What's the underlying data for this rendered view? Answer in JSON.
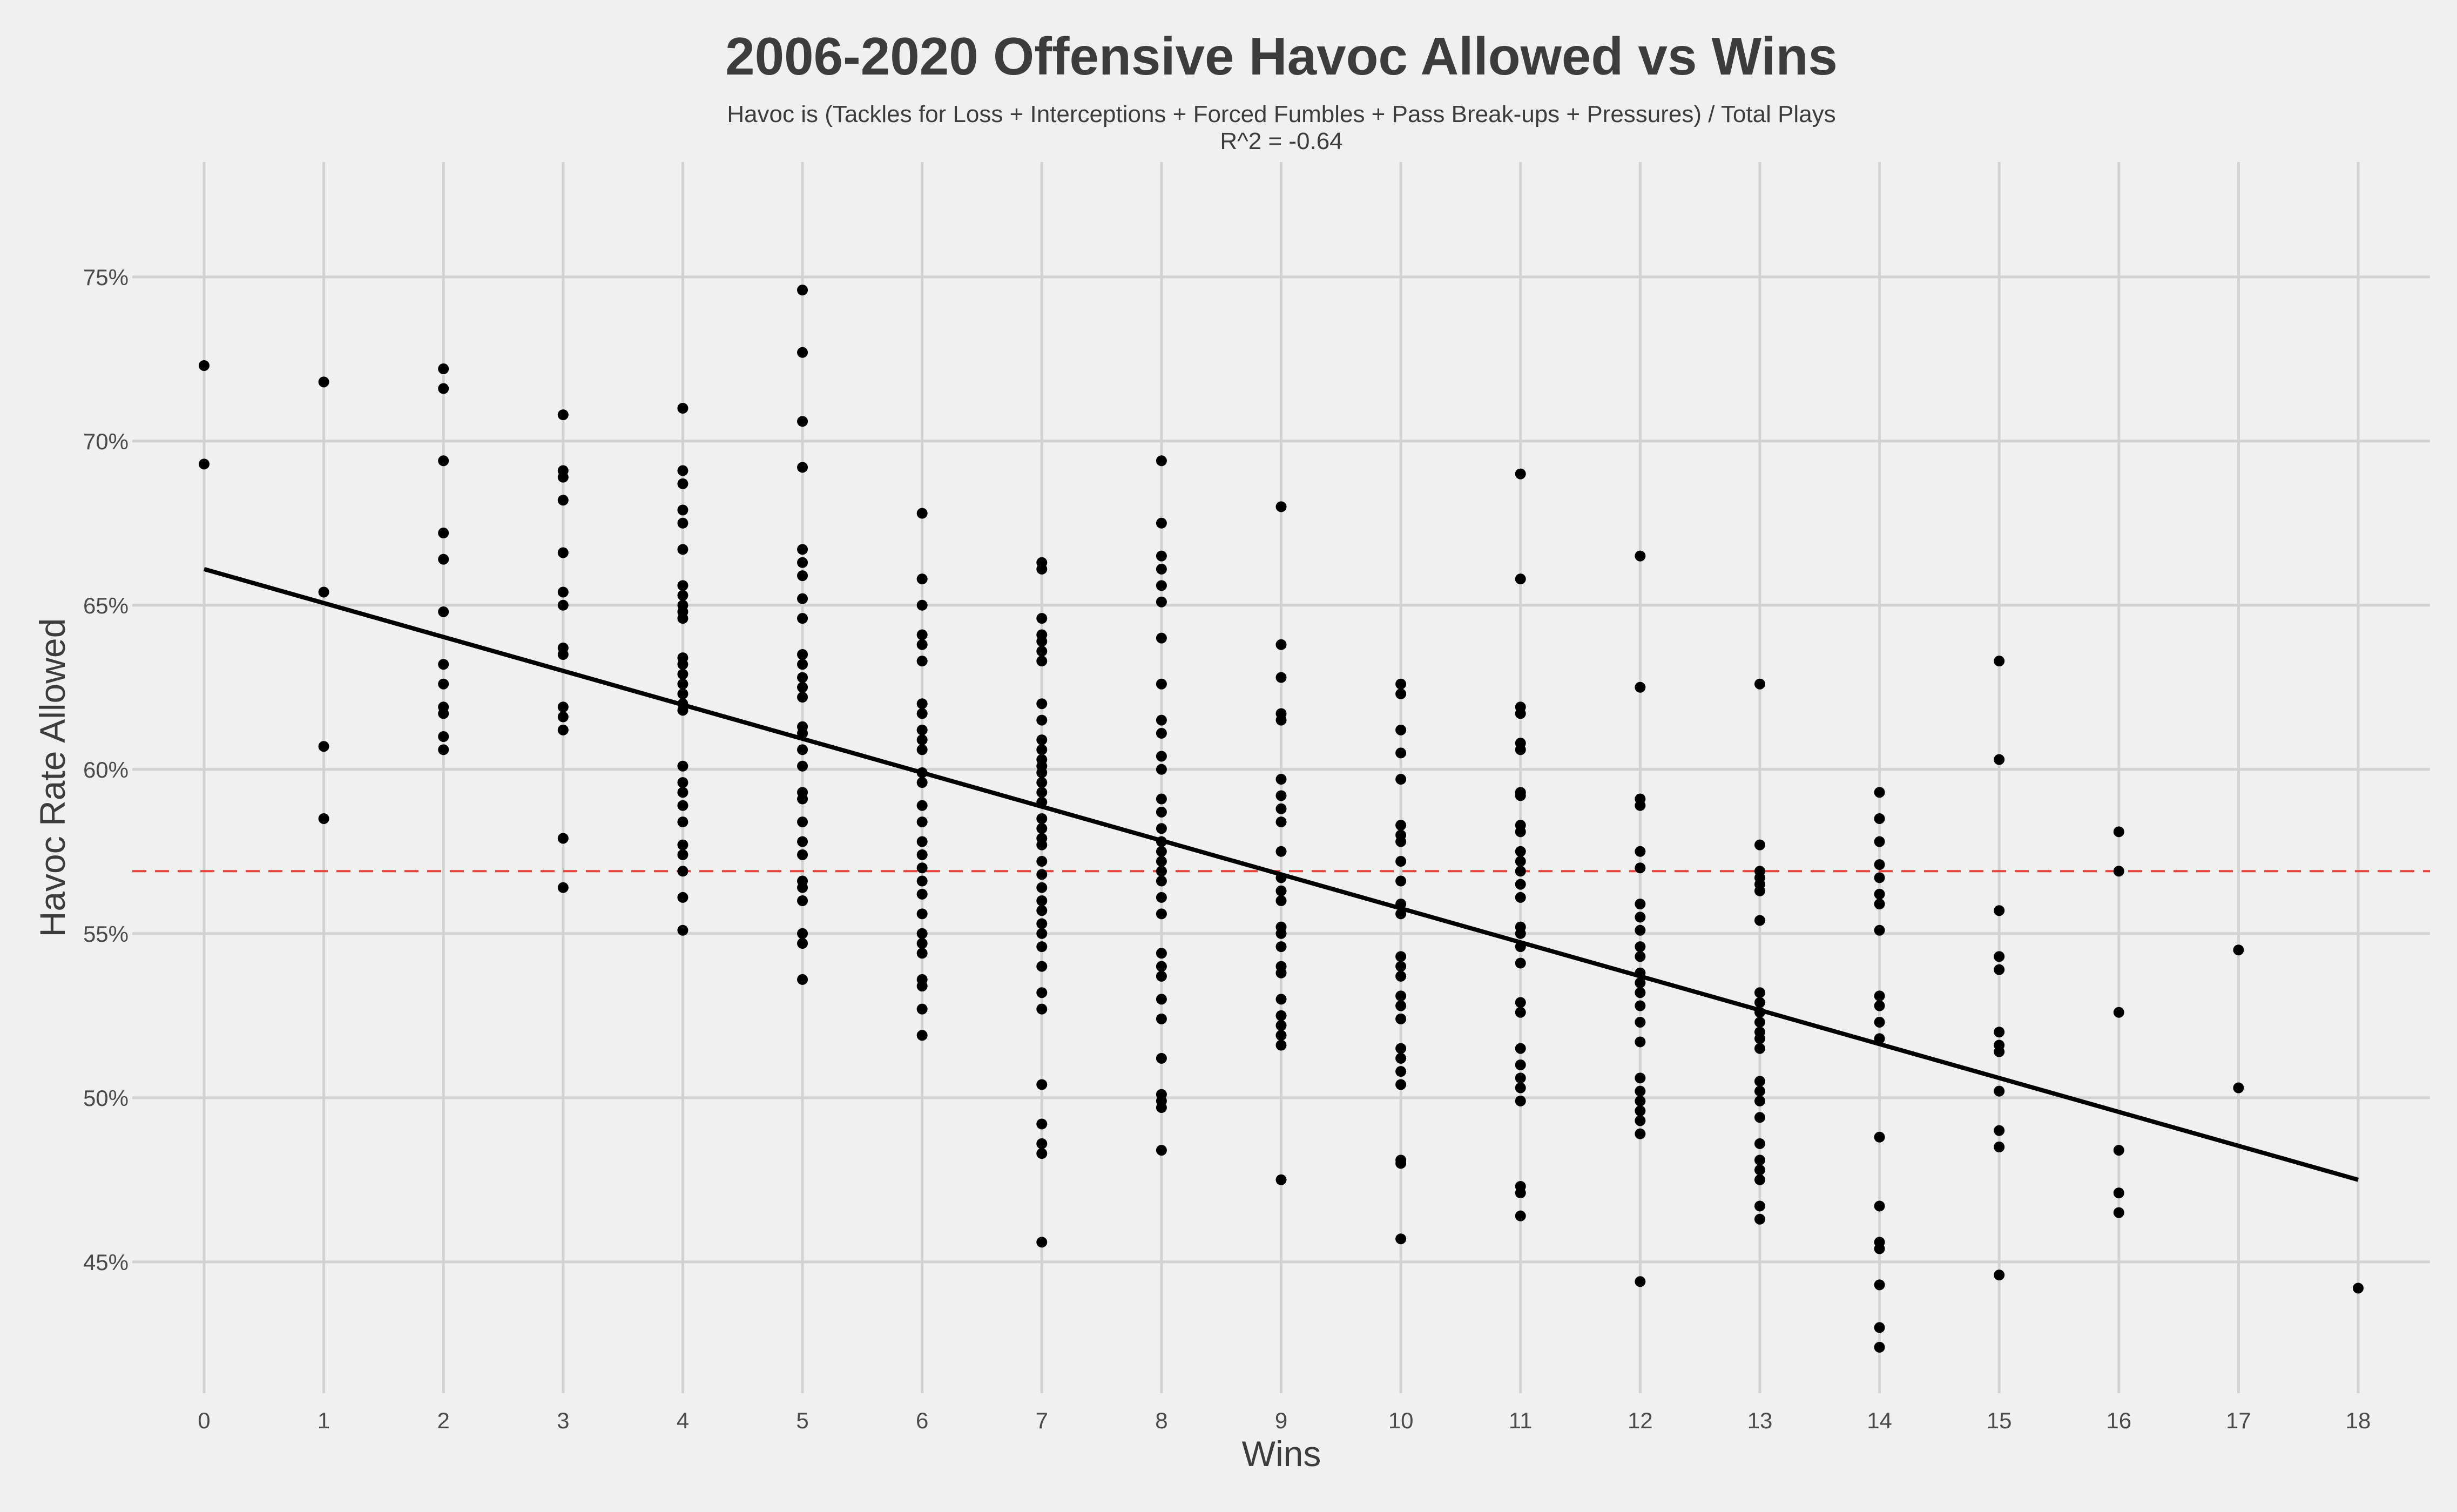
{
  "chart_data": {
    "type": "scatter",
    "title": "2006-2020 Offensive Havoc Allowed vs Wins",
    "subtitle_line1": "Havoc is (Tackles for Loss + Interceptions + Forced Fumbles + Pass Break-ups + Pressures) / Total Plays",
    "subtitle_line2": "R^2 = -0.64",
    "xlabel": "Wins",
    "ylabel": "Havoc Rate Allowed",
    "xlim": [
      -0.6,
      18.6
    ],
    "ylim": [
      41.0,
      78.5
    ],
    "x_ticks": [
      0,
      1,
      2,
      3,
      4,
      5,
      6,
      7,
      8,
      9,
      10,
      11,
      12,
      13,
      14,
      15,
      16,
      17,
      18
    ],
    "y_ticks": [
      45,
      50,
      55,
      60,
      65,
      70,
      75
    ],
    "y_tick_labels": [
      "45%",
      "50%",
      "55%",
      "60%",
      "65%",
      "70%",
      "75%"
    ],
    "grid": true,
    "reference_line": {
      "y": 56.9,
      "style": "dashed",
      "color": "#e8413c"
    },
    "trend_line": {
      "x": [
        0,
        18
      ],
      "y": [
        66.1,
        47.5
      ],
      "color": "#000000"
    },
    "point_color": "#000000",
    "points": [
      {
        "x": 0,
        "y": 72.3
      },
      {
        "x": 0,
        "y": 69.3
      },
      {
        "x": 1,
        "y": 71.8
      },
      {
        "x": 1,
        "y": 65.4
      },
      {
        "x": 1,
        "y": 60.7
      },
      {
        "x": 1,
        "y": 58.5
      },
      {
        "x": 2,
        "y": 72.2
      },
      {
        "x": 2,
        "y": 71.6
      },
      {
        "x": 2,
        "y": 69.4
      },
      {
        "x": 2,
        "y": 67.2
      },
      {
        "x": 2,
        "y": 66.4
      },
      {
        "x": 2,
        "y": 64.8
      },
      {
        "x": 2,
        "y": 63.2
      },
      {
        "x": 2,
        "y": 62.6
      },
      {
        "x": 2,
        "y": 61.9
      },
      {
        "x": 2,
        "y": 61.7
      },
      {
        "x": 2,
        "y": 61.0
      },
      {
        "x": 2,
        "y": 60.6
      },
      {
        "x": 3,
        "y": 70.8
      },
      {
        "x": 3,
        "y": 69.1
      },
      {
        "x": 3,
        "y": 68.9
      },
      {
        "x": 3,
        "y": 68.2
      },
      {
        "x": 3,
        "y": 66.6
      },
      {
        "x": 3,
        "y": 65.4
      },
      {
        "x": 3,
        "y": 65.0
      },
      {
        "x": 3,
        "y": 63.7
      },
      {
        "x": 3,
        "y": 63.5
      },
      {
        "x": 3,
        "y": 61.9
      },
      {
        "x": 3,
        "y": 61.6
      },
      {
        "x": 3,
        "y": 61.2
      },
      {
        "x": 3,
        "y": 57.9
      },
      {
        "x": 3,
        "y": 56.4
      },
      {
        "x": 4,
        "y": 71.0
      },
      {
        "x": 4,
        "y": 69.1
      },
      {
        "x": 4,
        "y": 68.7
      },
      {
        "x": 4,
        "y": 67.9
      },
      {
        "x": 4,
        "y": 67.5
      },
      {
        "x": 4,
        "y": 66.7
      },
      {
        "x": 4,
        "y": 65.6
      },
      {
        "x": 4,
        "y": 65.3
      },
      {
        "x": 4,
        "y": 65.0
      },
      {
        "x": 4,
        "y": 64.8
      },
      {
        "x": 4,
        "y": 64.6
      },
      {
        "x": 4,
        "y": 63.4
      },
      {
        "x": 4,
        "y": 63.2
      },
      {
        "x": 4,
        "y": 62.9
      },
      {
        "x": 4,
        "y": 62.6
      },
      {
        "x": 4,
        "y": 62.3
      },
      {
        "x": 4,
        "y": 62.0
      },
      {
        "x": 4,
        "y": 61.8
      },
      {
        "x": 4,
        "y": 60.1
      },
      {
        "x": 4,
        "y": 59.6
      },
      {
        "x": 4,
        "y": 59.3
      },
      {
        "x": 4,
        "y": 58.9
      },
      {
        "x": 4,
        "y": 58.4
      },
      {
        "x": 4,
        "y": 57.7
      },
      {
        "x": 4,
        "y": 57.4
      },
      {
        "x": 4,
        "y": 56.9
      },
      {
        "x": 4,
        "y": 56.1
      },
      {
        "x": 4,
        "y": 55.1
      },
      {
        "x": 5,
        "y": 74.6
      },
      {
        "x": 5,
        "y": 72.7
      },
      {
        "x": 5,
        "y": 70.6
      },
      {
        "x": 5,
        "y": 69.2
      },
      {
        "x": 5,
        "y": 66.7
      },
      {
        "x": 5,
        "y": 66.3
      },
      {
        "x": 5,
        "y": 65.9
      },
      {
        "x": 5,
        "y": 65.2
      },
      {
        "x": 5,
        "y": 64.6
      },
      {
        "x": 5,
        "y": 63.5
      },
      {
        "x": 5,
        "y": 63.2
      },
      {
        "x": 5,
        "y": 62.8
      },
      {
        "x": 5,
        "y": 62.5
      },
      {
        "x": 5,
        "y": 62.2
      },
      {
        "x": 5,
        "y": 61.3
      },
      {
        "x": 5,
        "y": 61.1
      },
      {
        "x": 5,
        "y": 60.6
      },
      {
        "x": 5,
        "y": 60.1
      },
      {
        "x": 5,
        "y": 59.3
      },
      {
        "x": 5,
        "y": 59.1
      },
      {
        "x": 5,
        "y": 58.4
      },
      {
        "x": 5,
        "y": 57.8
      },
      {
        "x": 5,
        "y": 57.4
      },
      {
        "x": 5,
        "y": 56.6
      },
      {
        "x": 5,
        "y": 56.4
      },
      {
        "x": 5,
        "y": 56.0
      },
      {
        "x": 5,
        "y": 55.0
      },
      {
        "x": 5,
        "y": 54.7
      },
      {
        "x": 5,
        "y": 53.6
      },
      {
        "x": 6,
        "y": 67.8
      },
      {
        "x": 6,
        "y": 65.8
      },
      {
        "x": 6,
        "y": 65.0
      },
      {
        "x": 6,
        "y": 64.1
      },
      {
        "x": 6,
        "y": 63.8
      },
      {
        "x": 6,
        "y": 63.3
      },
      {
        "x": 6,
        "y": 62.0
      },
      {
        "x": 6,
        "y": 61.7
      },
      {
        "x": 6,
        "y": 61.2
      },
      {
        "x": 6,
        "y": 60.9
      },
      {
        "x": 6,
        "y": 60.6
      },
      {
        "x": 6,
        "y": 59.9
      },
      {
        "x": 6,
        "y": 59.6
      },
      {
        "x": 6,
        "y": 58.9
      },
      {
        "x": 6,
        "y": 58.4
      },
      {
        "x": 6,
        "y": 57.8
      },
      {
        "x": 6,
        "y": 57.4
      },
      {
        "x": 6,
        "y": 57.0
      },
      {
        "x": 6,
        "y": 56.6
      },
      {
        "x": 6,
        "y": 56.2
      },
      {
        "x": 6,
        "y": 55.6
      },
      {
        "x": 6,
        "y": 55.0
      },
      {
        "x": 6,
        "y": 54.7
      },
      {
        "x": 6,
        "y": 54.4
      },
      {
        "x": 6,
        "y": 53.6
      },
      {
        "x": 6,
        "y": 53.4
      },
      {
        "x": 6,
        "y": 52.7
      },
      {
        "x": 6,
        "y": 51.9
      },
      {
        "x": 7,
        "y": 66.3
      },
      {
        "x": 7,
        "y": 66.1
      },
      {
        "x": 7,
        "y": 64.6
      },
      {
        "x": 7,
        "y": 64.1
      },
      {
        "x": 7,
        "y": 63.9
      },
      {
        "x": 7,
        "y": 63.6
      },
      {
        "x": 7,
        "y": 63.3
      },
      {
        "x": 7,
        "y": 62.0
      },
      {
        "x": 7,
        "y": 61.5
      },
      {
        "x": 7,
        "y": 60.9
      },
      {
        "x": 7,
        "y": 60.6
      },
      {
        "x": 7,
        "y": 60.3
      },
      {
        "x": 7,
        "y": 60.1
      },
      {
        "x": 7,
        "y": 59.9
      },
      {
        "x": 7,
        "y": 59.6
      },
      {
        "x": 7,
        "y": 59.3
      },
      {
        "x": 7,
        "y": 59.0
      },
      {
        "x": 7,
        "y": 58.5
      },
      {
        "x": 7,
        "y": 58.2
      },
      {
        "x": 7,
        "y": 57.9
      },
      {
        "x": 7,
        "y": 57.7
      },
      {
        "x": 7,
        "y": 57.2
      },
      {
        "x": 7,
        "y": 56.8
      },
      {
        "x": 7,
        "y": 56.4
      },
      {
        "x": 7,
        "y": 56.0
      },
      {
        "x": 7,
        "y": 55.7
      },
      {
        "x": 7,
        "y": 55.3
      },
      {
        "x": 7,
        "y": 55.0
      },
      {
        "x": 7,
        "y": 54.6
      },
      {
        "x": 7,
        "y": 54.0
      },
      {
        "x": 7,
        "y": 53.2
      },
      {
        "x": 7,
        "y": 52.7
      },
      {
        "x": 7,
        "y": 50.4
      },
      {
        "x": 7,
        "y": 49.2
      },
      {
        "x": 7,
        "y": 48.6
      },
      {
        "x": 7,
        "y": 48.3
      },
      {
        "x": 7,
        "y": 45.6
      },
      {
        "x": 8,
        "y": 69.4
      },
      {
        "x": 8,
        "y": 67.5
      },
      {
        "x": 8,
        "y": 66.5
      },
      {
        "x": 8,
        "y": 66.1
      },
      {
        "x": 8,
        "y": 65.6
      },
      {
        "x": 8,
        "y": 65.1
      },
      {
        "x": 8,
        "y": 64.0
      },
      {
        "x": 8,
        "y": 62.6
      },
      {
        "x": 8,
        "y": 61.5
      },
      {
        "x": 8,
        "y": 61.1
      },
      {
        "x": 8,
        "y": 60.4
      },
      {
        "x": 8,
        "y": 60.0
      },
      {
        "x": 8,
        "y": 59.1
      },
      {
        "x": 8,
        "y": 58.7
      },
      {
        "x": 8,
        "y": 58.2
      },
      {
        "x": 8,
        "y": 57.8
      },
      {
        "x": 8,
        "y": 57.5
      },
      {
        "x": 8,
        "y": 57.2
      },
      {
        "x": 8,
        "y": 56.9
      },
      {
        "x": 8,
        "y": 56.6
      },
      {
        "x": 8,
        "y": 56.1
      },
      {
        "x": 8,
        "y": 55.6
      },
      {
        "x": 8,
        "y": 54.4
      },
      {
        "x": 8,
        "y": 54.0
      },
      {
        "x": 8,
        "y": 53.7
      },
      {
        "x": 8,
        "y": 53.0
      },
      {
        "x": 8,
        "y": 52.4
      },
      {
        "x": 8,
        "y": 51.2
      },
      {
        "x": 8,
        "y": 50.1
      },
      {
        "x": 8,
        "y": 49.9
      },
      {
        "x": 8,
        "y": 49.7
      },
      {
        "x": 8,
        "y": 48.4
      },
      {
        "x": 9,
        "y": 68.0
      },
      {
        "x": 9,
        "y": 63.8
      },
      {
        "x": 9,
        "y": 62.8
      },
      {
        "x": 9,
        "y": 61.7
      },
      {
        "x": 9,
        "y": 61.5
      },
      {
        "x": 9,
        "y": 59.7
      },
      {
        "x": 9,
        "y": 59.2
      },
      {
        "x": 9,
        "y": 58.8
      },
      {
        "x": 9,
        "y": 58.4
      },
      {
        "x": 9,
        "y": 57.5
      },
      {
        "x": 9,
        "y": 56.7
      },
      {
        "x": 9,
        "y": 56.3
      },
      {
        "x": 9,
        "y": 56.0
      },
      {
        "x": 9,
        "y": 55.2
      },
      {
        "x": 9,
        "y": 55.0
      },
      {
        "x": 9,
        "y": 54.6
      },
      {
        "x": 9,
        "y": 54.0
      },
      {
        "x": 9,
        "y": 53.8
      },
      {
        "x": 9,
        "y": 53.0
      },
      {
        "x": 9,
        "y": 52.5
      },
      {
        "x": 9,
        "y": 52.2
      },
      {
        "x": 9,
        "y": 51.9
      },
      {
        "x": 9,
        "y": 51.6
      },
      {
        "x": 9,
        "y": 47.5
      },
      {
        "x": 10,
        "y": 62.6
      },
      {
        "x": 10,
        "y": 62.3
      },
      {
        "x": 10,
        "y": 61.2
      },
      {
        "x": 10,
        "y": 60.5
      },
      {
        "x": 10,
        "y": 59.7
      },
      {
        "x": 10,
        "y": 58.3
      },
      {
        "x": 10,
        "y": 58.0
      },
      {
        "x": 10,
        "y": 57.8
      },
      {
        "x": 10,
        "y": 57.2
      },
      {
        "x": 10,
        "y": 56.6
      },
      {
        "x": 10,
        "y": 55.9
      },
      {
        "x": 10,
        "y": 55.6
      },
      {
        "x": 10,
        "y": 54.3
      },
      {
        "x": 10,
        "y": 54.0
      },
      {
        "x": 10,
        "y": 53.7
      },
      {
        "x": 10,
        "y": 53.1
      },
      {
        "x": 10,
        "y": 52.8
      },
      {
        "x": 10,
        "y": 52.4
      },
      {
        "x": 10,
        "y": 51.5
      },
      {
        "x": 10,
        "y": 51.2
      },
      {
        "x": 10,
        "y": 50.8
      },
      {
        "x": 10,
        "y": 50.4
      },
      {
        "x": 10,
        "y": 48.1
      },
      {
        "x": 10,
        "y": 48.0
      },
      {
        "x": 10,
        "y": 45.7
      },
      {
        "x": 11,
        "y": 69.0
      },
      {
        "x": 11,
        "y": 65.8
      },
      {
        "x": 11,
        "y": 61.9
      },
      {
        "x": 11,
        "y": 61.7
      },
      {
        "x": 11,
        "y": 60.8
      },
      {
        "x": 11,
        "y": 60.6
      },
      {
        "x": 11,
        "y": 59.3
      },
      {
        "x": 11,
        "y": 59.2
      },
      {
        "x": 11,
        "y": 58.3
      },
      {
        "x": 11,
        "y": 58.1
      },
      {
        "x": 11,
        "y": 57.5
      },
      {
        "x": 11,
        "y": 57.2
      },
      {
        "x": 11,
        "y": 56.9
      },
      {
        "x": 11,
        "y": 56.5
      },
      {
        "x": 11,
        "y": 56.1
      },
      {
        "x": 11,
        "y": 55.2
      },
      {
        "x": 11,
        "y": 55.0
      },
      {
        "x": 11,
        "y": 54.6
      },
      {
        "x": 11,
        "y": 54.1
      },
      {
        "x": 11,
        "y": 52.9
      },
      {
        "x": 11,
        "y": 52.6
      },
      {
        "x": 11,
        "y": 51.5
      },
      {
        "x": 11,
        "y": 51.0
      },
      {
        "x": 11,
        "y": 50.6
      },
      {
        "x": 11,
        "y": 50.3
      },
      {
        "x": 11,
        "y": 49.9
      },
      {
        "x": 11,
        "y": 47.3
      },
      {
        "x": 11,
        "y": 47.1
      },
      {
        "x": 11,
        "y": 46.4
      },
      {
        "x": 12,
        "y": 66.5
      },
      {
        "x": 12,
        "y": 62.5
      },
      {
        "x": 12,
        "y": 59.1
      },
      {
        "x": 12,
        "y": 58.9
      },
      {
        "x": 12,
        "y": 57.5
      },
      {
        "x": 12,
        "y": 57.0
      },
      {
        "x": 12,
        "y": 55.9
      },
      {
        "x": 12,
        "y": 55.5
      },
      {
        "x": 12,
        "y": 55.1
      },
      {
        "x": 12,
        "y": 54.6
      },
      {
        "x": 12,
        "y": 54.3
      },
      {
        "x": 12,
        "y": 53.8
      },
      {
        "x": 12,
        "y": 53.5
      },
      {
        "x": 12,
        "y": 53.2
      },
      {
        "x": 12,
        "y": 52.8
      },
      {
        "x": 12,
        "y": 52.3
      },
      {
        "x": 12,
        "y": 51.7
      },
      {
        "x": 12,
        "y": 50.6
      },
      {
        "x": 12,
        "y": 50.2
      },
      {
        "x": 12,
        "y": 49.9
      },
      {
        "x": 12,
        "y": 49.6
      },
      {
        "x": 12,
        "y": 49.3
      },
      {
        "x": 12,
        "y": 48.9
      },
      {
        "x": 12,
        "y": 44.4
      },
      {
        "x": 13,
        "y": 62.6
      },
      {
        "x": 13,
        "y": 57.7
      },
      {
        "x": 13,
        "y": 56.9
      },
      {
        "x": 13,
        "y": 56.7
      },
      {
        "x": 13,
        "y": 56.5
      },
      {
        "x": 13,
        "y": 56.3
      },
      {
        "x": 13,
        "y": 55.4
      },
      {
        "x": 13,
        "y": 53.2
      },
      {
        "x": 13,
        "y": 52.9
      },
      {
        "x": 13,
        "y": 52.6
      },
      {
        "x": 13,
        "y": 52.3
      },
      {
        "x": 13,
        "y": 52.0
      },
      {
        "x": 13,
        "y": 51.8
      },
      {
        "x": 13,
        "y": 51.5
      },
      {
        "x": 13,
        "y": 50.5
      },
      {
        "x": 13,
        "y": 50.2
      },
      {
        "x": 13,
        "y": 49.9
      },
      {
        "x": 13,
        "y": 49.4
      },
      {
        "x": 13,
        "y": 48.6
      },
      {
        "x": 13,
        "y": 48.1
      },
      {
        "x": 13,
        "y": 47.8
      },
      {
        "x": 13,
        "y": 47.5
      },
      {
        "x": 13,
        "y": 46.7
      },
      {
        "x": 13,
        "y": 46.3
      },
      {
        "x": 14,
        "y": 59.3
      },
      {
        "x": 14,
        "y": 58.5
      },
      {
        "x": 14,
        "y": 57.8
      },
      {
        "x": 14,
        "y": 57.1
      },
      {
        "x": 14,
        "y": 56.7
      },
      {
        "x": 14,
        "y": 56.2
      },
      {
        "x": 14,
        "y": 55.9
      },
      {
        "x": 14,
        "y": 55.1
      },
      {
        "x": 14,
        "y": 53.1
      },
      {
        "x": 14,
        "y": 52.8
      },
      {
        "x": 14,
        "y": 52.3
      },
      {
        "x": 14,
        "y": 51.8
      },
      {
        "x": 14,
        "y": 48.8
      },
      {
        "x": 14,
        "y": 46.7
      },
      {
        "x": 14,
        "y": 45.6
      },
      {
        "x": 14,
        "y": 45.4
      },
      {
        "x": 14,
        "y": 44.3
      },
      {
        "x": 14,
        "y": 43.0
      },
      {
        "x": 14,
        "y": 42.4
      },
      {
        "x": 15,
        "y": 63.3
      },
      {
        "x": 15,
        "y": 60.3
      },
      {
        "x": 15,
        "y": 55.7
      },
      {
        "x": 15,
        "y": 54.3
      },
      {
        "x": 15,
        "y": 53.9
      },
      {
        "x": 15,
        "y": 52.0
      },
      {
        "x": 15,
        "y": 51.6
      },
      {
        "x": 15,
        "y": 51.4
      },
      {
        "x": 15,
        "y": 50.2
      },
      {
        "x": 15,
        "y": 49.0
      },
      {
        "x": 15,
        "y": 48.5
      },
      {
        "x": 15,
        "y": 44.6
      },
      {
        "x": 16,
        "y": 58.1
      },
      {
        "x": 16,
        "y": 56.9
      },
      {
        "x": 16,
        "y": 52.6
      },
      {
        "x": 16,
        "y": 48.4
      },
      {
        "x": 16,
        "y": 47.1
      },
      {
        "x": 16,
        "y": 46.5
      },
      {
        "x": 17,
        "y": 54.5
      },
      {
        "x": 17,
        "y": 50.3
      },
      {
        "x": 18,
        "y": 44.2
      }
    ]
  }
}
